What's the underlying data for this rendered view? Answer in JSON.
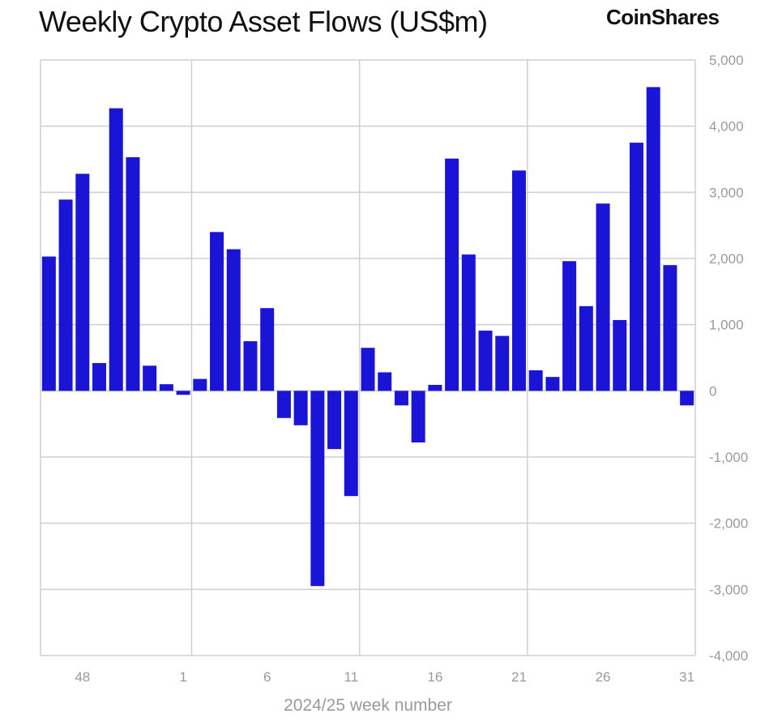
{
  "brand": "CoinShares",
  "chart_data": {
    "type": "bar",
    "title": "Weekly Crypto Asset Flows (US$m)",
    "xlabel": "2024/25 week number",
    "ylabel": "",
    "ylim": [
      -4000,
      5000
    ],
    "yticks": [
      5000,
      4000,
      3000,
      2000,
      1000,
      0,
      -1000,
      -2000,
      -3000,
      -4000
    ],
    "ytick_labels": [
      "5,000",
      "4,000",
      "3,000",
      "2,000",
      "1,000",
      "0",
      "-1,000",
      "-2,000",
      "-3,000",
      "-4,000"
    ],
    "xtick_labels": [
      "48",
      "1",
      "6",
      "11",
      "16",
      "21",
      "26",
      "31"
    ],
    "grid": true,
    "bar_color": "#1a14d6",
    "categories": [
      "46",
      "47",
      "48",
      "49",
      "50",
      "51",
      "52",
      "53",
      "1",
      "2",
      "3",
      "4",
      "5",
      "6",
      "7",
      "8",
      "9",
      "10",
      "11",
      "12",
      "13",
      "14",
      "15",
      "16",
      "17",
      "18",
      "19",
      "20",
      "21",
      "22",
      "23",
      "24",
      "25",
      "26",
      "27",
      "28",
      "29",
      "30",
      "31"
    ],
    "values": [
      2030,
      2890,
      3280,
      420,
      4270,
      3530,
      380,
      100,
      -60,
      180,
      2400,
      2140,
      750,
      1250,
      -410,
      -520,
      -2950,
      -880,
      -1590,
      650,
      280,
      -220,
      -780,
      90,
      3510,
      2060,
      910,
      830,
      3330,
      310,
      210,
      1960,
      1280,
      2830,
      1070,
      3750,
      4590,
      1900,
      -220
    ]
  }
}
